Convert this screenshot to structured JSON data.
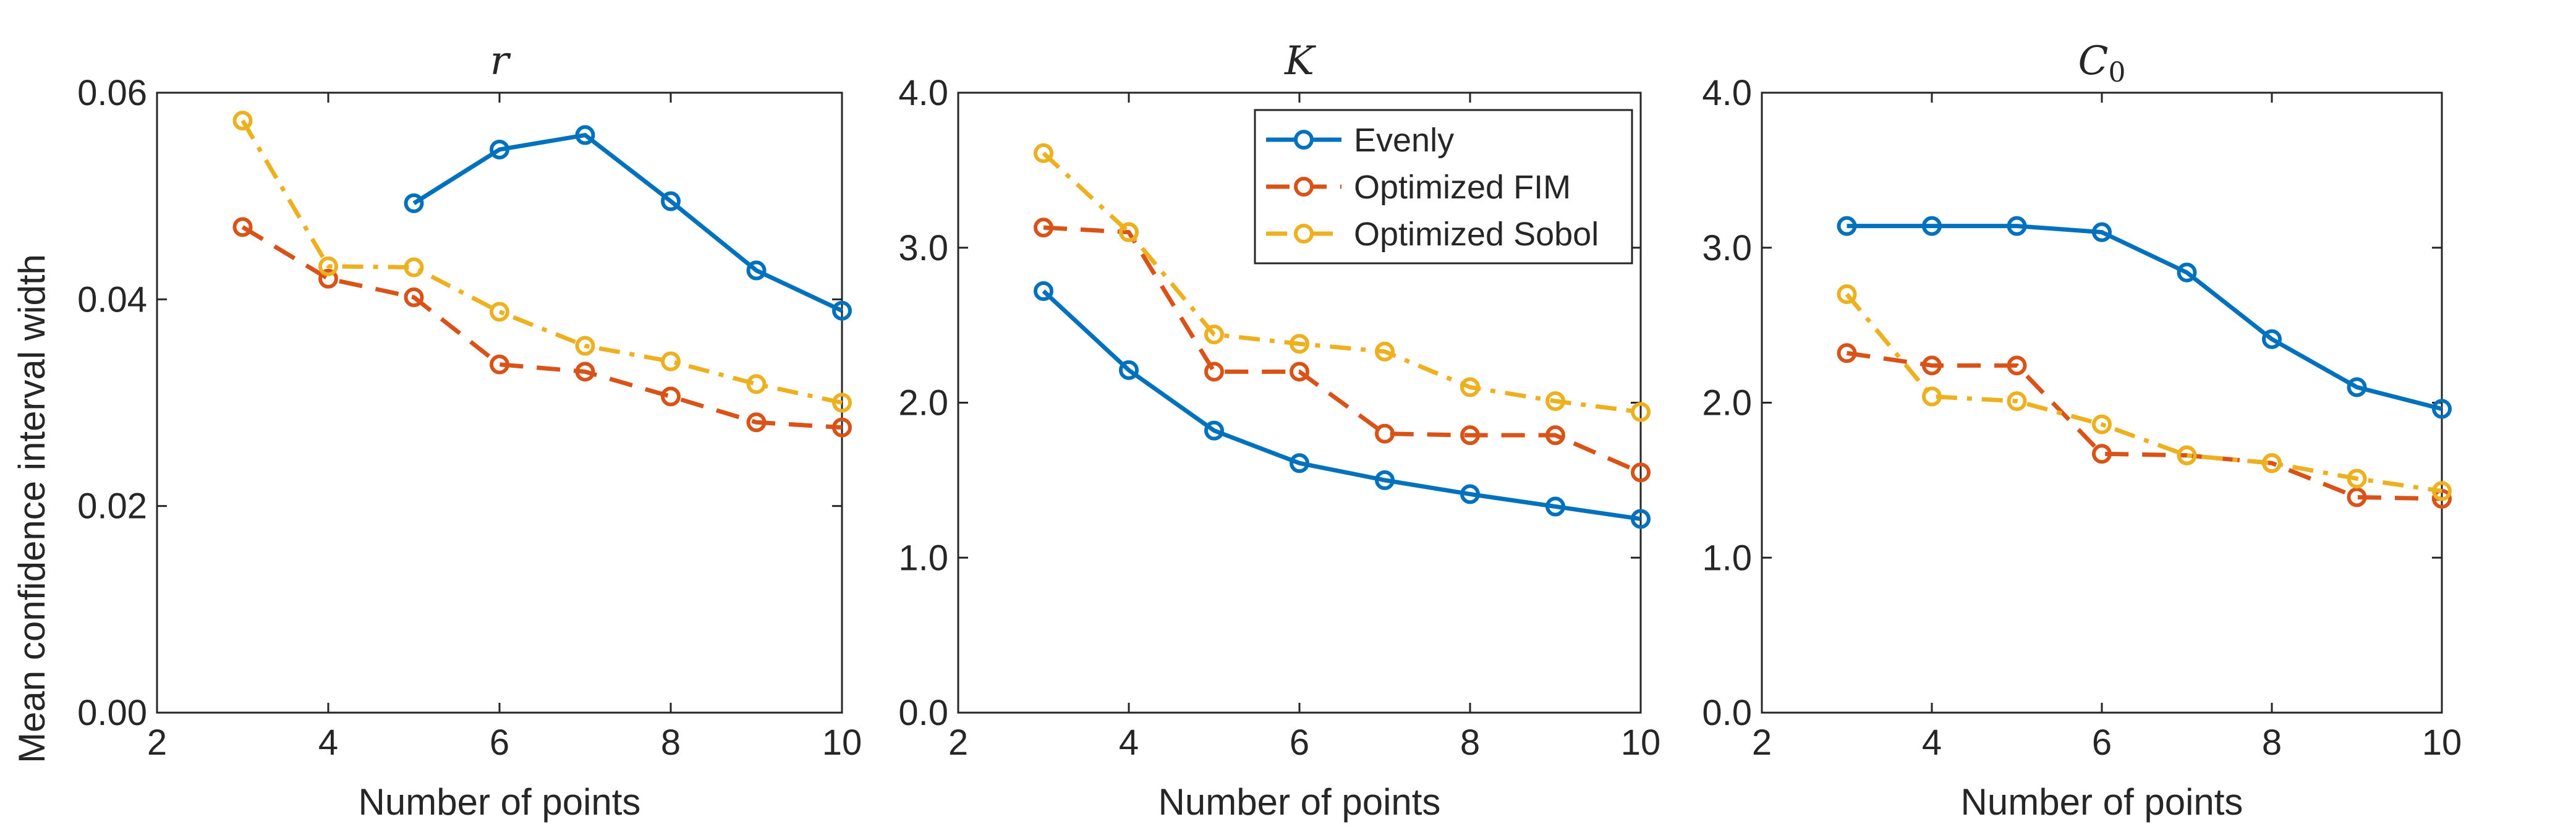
{
  "figure": {
    "ylabel": "Mean confidence interval width",
    "xlabel": "Number of points"
  },
  "series_styles": [
    {
      "name": "Evenly",
      "color": "#0072BD",
      "dash": "solid"
    },
    {
      "name": "Optimized FIM",
      "color": "#D95319",
      "dash": "dashed"
    },
    {
      "name": "Optimized Sobol",
      "color": "#EDB120",
      "dash": "dashdot"
    }
  ],
  "chart_data": [
    {
      "type": "line",
      "title": "r",
      "title_sub": "",
      "xlabel": "Number of points",
      "ylabel": "Mean confidence interval width",
      "xlim": [
        2,
        10
      ],
      "ylim": [
        0,
        0.06
      ],
      "xticks": [
        2,
        4,
        6,
        8,
        10
      ],
      "yticks": [
        0,
        0.02,
        0.04,
        0.06
      ],
      "ytick_labels": [
        "0.00",
        "0.02",
        "0.04",
        "0.06"
      ],
      "legend": false,
      "series": [
        {
          "name": "Evenly",
          "x": [
            5,
            6,
            7,
            8,
            9,
            10
          ],
          "y": [
            0.0493,
            0.0545,
            0.0559,
            0.0495,
            0.0428,
            0.0389
          ]
        },
        {
          "name": "Optimized FIM",
          "x": [
            3,
            4,
            5,
            6,
            7,
            8,
            9,
            10
          ],
          "y": [
            0.047,
            0.042,
            0.0402,
            0.0337,
            0.033,
            0.0306,
            0.0281,
            0.0276
          ]
        },
        {
          "name": "Optimized Sobol",
          "x": [
            3,
            4,
            5,
            6,
            7,
            8,
            9,
            10
          ],
          "y": [
            0.0573,
            0.0432,
            0.0431,
            0.0388,
            0.0355,
            0.034,
            0.0318,
            0.03
          ]
        }
      ]
    },
    {
      "type": "line",
      "title": "K",
      "title_sub": "",
      "xlabel": "Number of points",
      "ylabel": "",
      "xlim": [
        2,
        10
      ],
      "ylim": [
        0,
        4
      ],
      "xticks": [
        2,
        4,
        6,
        8,
        10
      ],
      "yticks": [
        0,
        1,
        2,
        3,
        4
      ],
      "ytick_labels": [
        "0.0",
        "1.0",
        "2.0",
        "3.0",
        "4.0"
      ],
      "legend": true,
      "legend_position": "top-right",
      "series": [
        {
          "name": "Evenly",
          "x": [
            3,
            4,
            5,
            6,
            7,
            8,
            9,
            10
          ],
          "y": [
            2.72,
            2.21,
            1.82,
            1.61,
            1.5,
            1.41,
            1.33,
            1.25
          ]
        },
        {
          "name": "Optimized FIM",
          "x": [
            3,
            4,
            5,
            6,
            7,
            8,
            9,
            10
          ],
          "y": [
            3.13,
            3.1,
            2.2,
            2.2,
            1.8,
            1.79,
            1.79,
            1.55
          ]
        },
        {
          "name": "Optimized Sobol",
          "x": [
            3,
            4,
            5,
            6,
            7,
            8,
            9,
            10
          ],
          "y": [
            3.61,
            3.1,
            2.44,
            2.38,
            2.33,
            2.1,
            2.01,
            1.94
          ]
        }
      ]
    },
    {
      "type": "line",
      "title": "C",
      "title_sub": "0",
      "xlabel": "Number of points",
      "ylabel": "",
      "xlim": [
        2,
        10
      ],
      "ylim": [
        0,
        4
      ],
      "xticks": [
        2,
        4,
        6,
        8,
        10
      ],
      "yticks": [
        0,
        1,
        2,
        3,
        4
      ],
      "ytick_labels": [
        "0.0",
        "1.0",
        "2.0",
        "3.0",
        "4.0"
      ],
      "legend": false,
      "series": [
        {
          "name": "Evenly",
          "x": [
            3,
            4,
            5,
            6,
            7,
            8,
            9,
            10
          ],
          "y": [
            3.14,
            3.14,
            3.14,
            3.1,
            2.84,
            2.41,
            2.1,
            1.96
          ]
        },
        {
          "name": "Optimized FIM",
          "x": [
            3,
            4,
            5,
            6,
            7,
            8,
            9,
            10
          ],
          "y": [
            2.32,
            2.24,
            2.24,
            1.67,
            1.66,
            1.61,
            1.39,
            1.38
          ]
        },
        {
          "name": "Optimized Sobol",
          "x": [
            3,
            4,
            5,
            6,
            7,
            8,
            9,
            10
          ],
          "y": [
            2.7,
            2.04,
            2.01,
            1.86,
            1.66,
            1.61,
            1.51,
            1.43
          ]
        }
      ]
    }
  ]
}
